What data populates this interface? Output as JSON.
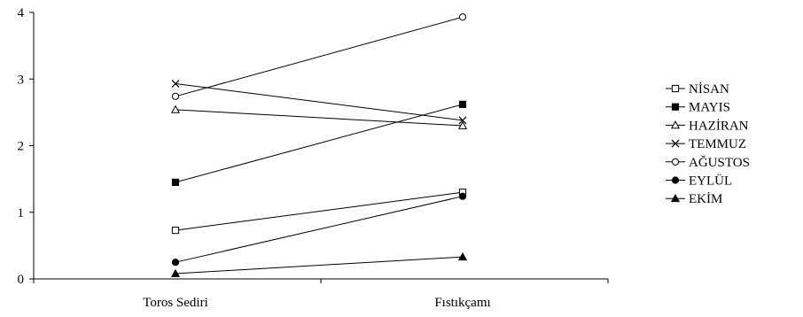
{
  "chart_data": {
    "type": "line",
    "categories": [
      "Toros Sediri",
      "Fıstıkçamı"
    ],
    "ylim": [
      0,
      4
    ],
    "yticks": [
      "0",
      "1",
      "2",
      "3",
      "4"
    ],
    "legend_position": "right",
    "grid": false,
    "series": [
      {
        "name": "NİSAN",
        "marker": "square-open",
        "values": [
          0.73,
          1.3
        ]
      },
      {
        "name": "MAYIS",
        "marker": "square-filled",
        "values": [
          1.45,
          2.62
        ]
      },
      {
        "name": "HAZİRAN",
        "marker": "triangle-open",
        "values": [
          2.54,
          2.3
        ]
      },
      {
        "name": "TEMMUZ",
        "marker": "x",
        "values": [
          2.93,
          2.38
        ]
      },
      {
        "name": "AĞUSTOS",
        "marker": "circle-open",
        "values": [
          2.74,
          3.93
        ]
      },
      {
        "name": "EYLÜL",
        "marker": "circle-filled",
        "values": [
          0.25,
          1.24
        ]
      },
      {
        "name": "EKİM",
        "marker": "triangle-filled",
        "values": [
          0.08,
          0.33
        ]
      }
    ]
  }
}
